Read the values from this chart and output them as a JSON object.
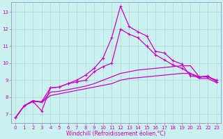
{
  "xlabel": "Windchill (Refroidissement éolien,°C)",
  "bg_color": "#caf0f0",
  "grid_color": "#b0d8d8",
  "line_color": "#cc00cc",
  "xlim": [
    -0.5,
    23.5
  ],
  "ylim": [
    6.5,
    13.6
  ],
  "yticks": [
    7,
    8,
    9,
    10,
    11,
    12,
    13
  ],
  "xticks": [
    0,
    1,
    2,
    3,
    4,
    5,
    6,
    7,
    8,
    9,
    10,
    11,
    12,
    13,
    14,
    15,
    16,
    17,
    18,
    19,
    20,
    21,
    22,
    23
  ],
  "series": [
    {
      "y": [
        6.8,
        7.5,
        7.75,
        7.2,
        8.55,
        8.6,
        8.8,
        9.0,
        9.3,
        9.7,
        10.3,
        11.5,
        13.35,
        12.15,
        11.85,
        11.6,
        10.7,
        10.6,
        10.15,
        9.95,
        9.25,
        9.2,
        9.25,
        8.9
      ],
      "marker": true,
      "lw": 0.9
    },
    {
      "y": [
        6.8,
        7.5,
        7.75,
        7.75,
        8.55,
        8.6,
        8.8,
        8.9,
        9.0,
        9.5,
        9.8,
        10.0,
        12.0,
        11.7,
        11.5,
        11.0,
        10.5,
        10.2,
        9.9,
        9.7,
        9.4,
        9.2,
        9.2,
        9.0
      ],
      "marker": true,
      "lw": 0.9
    },
    {
      "y": [
        6.8,
        7.5,
        7.8,
        7.7,
        8.3,
        8.35,
        8.45,
        8.55,
        8.65,
        8.8,
        9.0,
        9.2,
        9.4,
        9.5,
        9.6,
        9.65,
        9.7,
        9.75,
        9.8,
        9.85,
        9.85,
        9.2,
        9.2,
        8.95
      ],
      "marker": false,
      "lw": 0.9
    },
    {
      "y": [
        6.8,
        7.5,
        7.8,
        7.7,
        8.1,
        8.2,
        8.3,
        8.4,
        8.5,
        8.6,
        8.7,
        8.8,
        9.0,
        9.1,
        9.15,
        9.2,
        9.25,
        9.3,
        9.35,
        9.4,
        9.4,
        9.1,
        9.1,
        8.85
      ],
      "marker": false,
      "lw": 0.9
    }
  ],
  "marker_style": "+",
  "marker_size": 3,
  "tick_fontsize": 5,
  "xlabel_fontsize": 5.5
}
